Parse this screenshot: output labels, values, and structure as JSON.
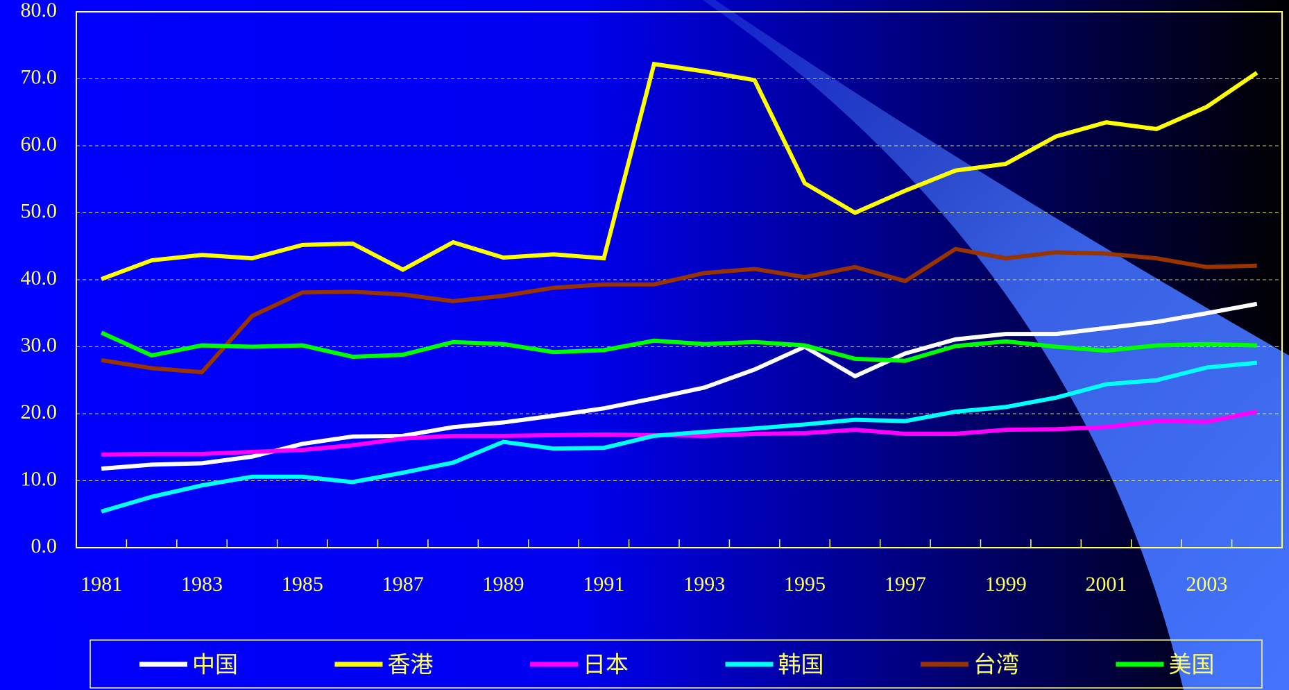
{
  "chart_data": {
    "type": "line",
    "categories": [
      "1981",
      null,
      "1983",
      null,
      "1985",
      null,
      "1987",
      null,
      "1989",
      null,
      "1991",
      null,
      "1993",
      null,
      "1995",
      null,
      "1997",
      null,
      "1999",
      null,
      "2001",
      null,
      "2003",
      null
    ],
    "series": [
      {
        "name": "中国",
        "color": "#ffffff",
        "values": [
          11.8,
          12.4,
          12.6,
          13.6,
          15.5,
          16.6,
          16.7,
          18.0,
          18.7,
          19.7,
          20.8,
          22.3,
          23.9,
          26.6,
          30.0,
          25.6,
          29.0,
          31.1,
          31.9,
          31.9,
          32.8,
          33.7,
          35.0,
          36.4
        ]
      },
      {
        "name": "香港",
        "color": "#ffff00",
        "values": [
          40.1,
          42.9,
          43.7,
          43.2,
          45.2,
          45.4,
          41.5,
          45.6,
          43.3,
          43.8,
          43.2,
          72.2,
          71.1,
          69.8,
          54.4,
          50.0,
          53.3,
          56.3,
          57.3,
          61.4,
          63.5,
          62.5,
          65.8,
          70.9
        ]
      },
      {
        "name": "日本",
        "color": "#ff00ff",
        "values": [
          13.9,
          14.0,
          14.0,
          14.3,
          14.6,
          15.3,
          16.3,
          16.7,
          16.7,
          16.8,
          16.9,
          16.8,
          16.7,
          17.0,
          17.1,
          17.6,
          17.0,
          17.0,
          17.6,
          17.7,
          18.0,
          18.9,
          18.8,
          20.3
        ]
      },
      {
        "name": "韩国",
        "color": "#00ffff",
        "values": [
          5.4,
          7.6,
          9.3,
          10.6,
          10.6,
          9.8,
          11.2,
          12.7,
          15.8,
          14.8,
          14.9,
          16.7,
          17.3,
          17.8,
          18.4,
          19.1,
          18.9,
          20.3,
          21.0,
          22.4,
          24.4,
          25.0,
          26.9,
          27.6
        ]
      },
      {
        "name": "台湾",
        "color": "#993300",
        "values": [
          28.0,
          26.8,
          26.2,
          34.6,
          38.1,
          38.2,
          37.8,
          36.8,
          37.6,
          38.8,
          39.3,
          39.3,
          41.0,
          41.6,
          40.4,
          41.9,
          39.8,
          44.6,
          43.2,
          44.1,
          43.9,
          43.2,
          41.9,
          42.1
        ]
      },
      {
        "name": "美国",
        "color": "#00ff00",
        "values": [
          32.1,
          28.7,
          30.2,
          30.0,
          30.2,
          28.5,
          28.8,
          30.7,
          30.4,
          29.2,
          29.5,
          30.9,
          30.4,
          30.7,
          30.2,
          28.2,
          27.9,
          30.1,
          30.8,
          30.0,
          29.4,
          30.2,
          30.4,
          30.2
        ]
      }
    ],
    "ylim": [
      0,
      80
    ],
    "yticks": [
      {
        "value": 0,
        "label": "0.0"
      },
      {
        "value": 10,
        "label": "10.0"
      },
      {
        "value": 20,
        "label": "20.0"
      },
      {
        "value": 30,
        "label": "30.0"
      },
      {
        "value": 40,
        "label": "40.0"
      },
      {
        "value": 50,
        "label": "50.0"
      },
      {
        "value": 60,
        "label": "60.0"
      },
      {
        "value": 70,
        "label": "70.0"
      },
      {
        "value": 80,
        "label": "80.0"
      }
    ],
    "grid": true,
    "legend": "bottom"
  }
}
